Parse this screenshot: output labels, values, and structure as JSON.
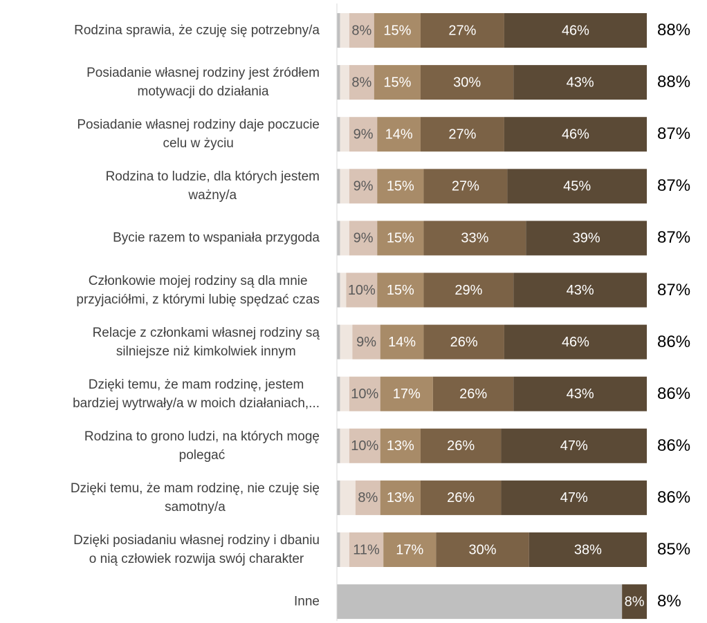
{
  "chart_data": {
    "type": "stacked-barh",
    "categories": [
      "Rodzina sprawia, że czuję się potrzebny/a",
      "Posiadanie własnej rodziny jest źródłem\nmotywacji do działania",
      "Posiadanie własnej rodziny daje poczucie\ncelu w życiu",
      "Rodzina to ludzie, dla których jestem\nważny/a",
      "Bycie razem to wspaniała przygoda",
      "Członkowie mojej rodziny są dla mnie\nprzyjaciółmi, z którymi lubię spędzać czas",
      "Relacje z członkami własnej rodziny są\nsilniejsze niż kimkolwiek innym",
      "Dzięki temu, że mam rodzinę, jestem\nbardziej wytrwały/a w moich działaniach,...",
      "Rodzina to grono ludzi, na których mogę\npolegać",
      "Dzięki temu, że mam rodzinę, nie czuję się\nsamotny/a",
      "Dzięki posiadaniu własnej rodziny i dbaniu\no nią człowiek rozwija swój charakter",
      "Inne"
    ],
    "xlim": [
      0,
      100
    ],
    "series": [
      {
        "color": "#bfbfbf",
        "label_color": "#ffffff",
        "values": [
          1,
          1,
          1,
          1,
          1,
          1,
          1,
          1,
          1,
          1,
          1,
          92
        ],
        "value_labels": [
          null,
          null,
          null,
          null,
          null,
          null,
          null,
          null,
          null,
          null,
          null,
          null
        ]
      },
      {
        "color": "#efe6df",
        "label_color": "#595959",
        "values": [
          3,
          3,
          3,
          3,
          3,
          2,
          4,
          3,
          3,
          5,
          3,
          null
        ],
        "value_labels": [
          null,
          null,
          null,
          null,
          null,
          null,
          null,
          null,
          null,
          null,
          null,
          null
        ]
      },
      {
        "color": "#d9c3b5",
        "label_color": "#595959",
        "values": [
          8,
          8,
          9,
          9,
          9,
          10,
          9,
          10,
          10,
          8,
          11,
          null
        ],
        "value_labels": [
          "8%",
          "8%",
          "9%",
          "9%",
          "9%",
          "10%",
          "9%",
          "10%",
          "10%",
          "8%",
          "11%",
          null
        ]
      },
      {
        "color": "#a88b68",
        "label_color": "#ffffff",
        "values": [
          15,
          15,
          14,
          15,
          15,
          15,
          14,
          17,
          13,
          13,
          17,
          null
        ],
        "value_labels": [
          "15%",
          "15%",
          "14%",
          "15%",
          "15%",
          "15%",
          "14%",
          "17%",
          "13%",
          "13%",
          "17%",
          null
        ]
      },
      {
        "color": "#7b6246",
        "label_color": "#ffffff",
        "values": [
          27,
          30,
          27,
          27,
          33,
          29,
          26,
          26,
          26,
          26,
          30,
          null
        ],
        "value_labels": [
          "27%",
          "30%",
          "27%",
          "27%",
          "33%",
          "29%",
          "26%",
          "26%",
          "26%",
          "26%",
          "30%",
          null
        ]
      },
      {
        "color": "#5b4a36",
        "label_color": "#ffffff",
        "values": [
          46,
          43,
          46,
          45,
          39,
          43,
          46,
          43,
          47,
          47,
          38,
          8
        ],
        "value_labels": [
          "46%",
          "43%",
          "46%",
          "45%",
          "39%",
          "43%",
          "46%",
          "43%",
          "47%",
          "47%",
          "38%",
          "8%"
        ]
      }
    ],
    "totals": {
      "values": [
        88,
        88,
        87,
        87,
        87,
        87,
        86,
        86,
        86,
        86,
        85,
        8
      ],
      "value_labels": [
        "88%",
        "88%",
        "87%",
        "87%",
        "87%",
        "87%",
        "86%",
        "86%",
        "86%",
        "86%",
        "85%",
        "8%"
      ]
    }
  }
}
